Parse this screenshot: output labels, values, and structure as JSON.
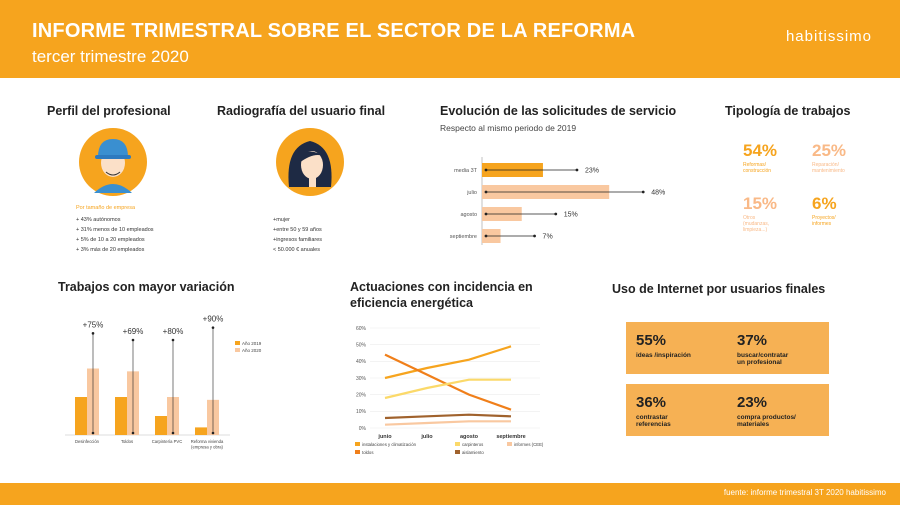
{
  "header": {
    "title": "INFORME TRIMESTRAL SOBRE  EL SECTOR DE LA REFORMA",
    "subtitle": "tercer trimestre 2020",
    "brand": "habitissimo"
  },
  "footer": {
    "source": "fuente: informe trimestral 3T 2020 habitissimo"
  },
  "colors": {
    "orange": "#f6a41e",
    "bar_light": "#f9c8a0",
    "bar_dark": "#f6a41e"
  },
  "perfil": {
    "title": "Perfil del profesional",
    "icon": "worker-avatar",
    "label": "Por tamaño de empresa",
    "items": [
      "+ 43%   autónomos",
      "+ 31%   menos de 10 empleados",
      "+ 5%   de 10 a 20 empleados",
      "+ 3%   más de 20 empleados"
    ]
  },
  "radiografia": {
    "title": "Radiografía del usuario final",
    "icon": "woman-avatar",
    "items": [
      "+mujer",
      "+entre 50 y 59 años",
      "+ingresos familiares",
      "  < 50.000 € anuales"
    ]
  },
  "evolucion": {
    "title": "Evolución de las solicitudes de servicio",
    "subtitle": "Respecto al mismo periodo de 2019",
    "chart_data": {
      "type": "bar",
      "orientation": "horizontal",
      "categories": [
        "media 3T",
        "julio",
        "agosto",
        "septiembre"
      ],
      "values": [
        23,
        48,
        15,
        7
      ],
      "labels": [
        "23%",
        "48%",
        "15%",
        "7%"
      ],
      "colors": [
        "#f6a41e",
        "#f9c8a0",
        "#f9c8a0",
        "#f9c8a0"
      ]
    }
  },
  "tipologia": {
    "title": "Tipología de trabajos",
    "items": [
      {
        "pct": "54%",
        "label": "Reformas/\nconstrucción",
        "color": "#f6a41e"
      },
      {
        "pct": "25%",
        "label": "Reparación/\nmantenimiento",
        "color": "#f9b987"
      },
      {
        "pct": "15%",
        "label": "Otros\n(mudanzas,\nlimpieza...)",
        "color": "#f6a41e"
      },
      {
        "pct": "6%",
        "label": "Proyectos/\ninformes",
        "color": "#f9b987"
      }
    ]
  },
  "variacion": {
    "title": "Trabajos con mayor variación",
    "chart_data": {
      "type": "bar",
      "categories": [
        "Desinfección",
        "Toldos",
        "Carpintería PVC",
        "Reforma vivienda\n(empresa y obra)"
      ],
      "category_lines": [
        [
          "Desinfección"
        ],
        [
          "Toldos"
        ],
        [
          "Carpintería PVC"
        ],
        [
          "Reforma vivienda",
          "(empresa y obra)"
        ]
      ],
      "series": [
        {
          "name": "Año 2019",
          "values": [
            40,
            40,
            20,
            8
          ],
          "color": "#f6a41e"
        },
        {
          "name": "Año 2020",
          "values": [
            70,
            67,
            40,
            37
          ],
          "color": "#f9c8a0"
        }
      ],
      "annotations": [
        "+75%",
        "+69%",
        "+80%",
        "+90%"
      ],
      "error_tops": [
        107,
        100,
        100,
        113
      ],
      "ylim": [
        0,
        120
      ]
    }
  },
  "actuaciones": {
    "title_line1": "Actuaciones con incidencia en",
    "title_line2": "eficiencia energética",
    "chart_data": {
      "type": "line",
      "x": [
        "junio",
        "julio",
        "agosto",
        "septiembre"
      ],
      "ylim": [
        0,
        60
      ],
      "yticks": [
        "0%",
        "10%",
        "20%",
        "30%",
        "40%",
        "50%",
        "60%"
      ],
      "series": [
        {
          "name": "instalaciones y climatización",
          "values": [
            30,
            36,
            41,
            49
          ],
          "color": "#f6a41e"
        },
        {
          "name": "toldos",
          "values": [
            44,
            32,
            20,
            11
          ],
          "color": "#f07f1a"
        },
        {
          "name": "carpinteros",
          "values": [
            18,
            24,
            29,
            29
          ],
          "color": "#fbd96a"
        },
        {
          "name": "aislamiento",
          "values": [
            6,
            7,
            8,
            7
          ],
          "color": "#a0622d"
        },
        {
          "name": "informes (CEE)",
          "values": [
            2,
            3,
            4,
            4
          ],
          "color": "#f9c8a0"
        }
      ]
    }
  },
  "internet": {
    "title": "Uso de Internet por usuarios finales",
    "boxes": [
      {
        "pct": "55%",
        "label": "ideas /inspiración"
      },
      {
        "pct": "37%",
        "label": "buscar/contratar\nun profesional"
      },
      {
        "pct": "36%",
        "label": "contrastar\nreferencias"
      },
      {
        "pct": "23%",
        "label": "compra productos/\nmateriales"
      }
    ]
  }
}
